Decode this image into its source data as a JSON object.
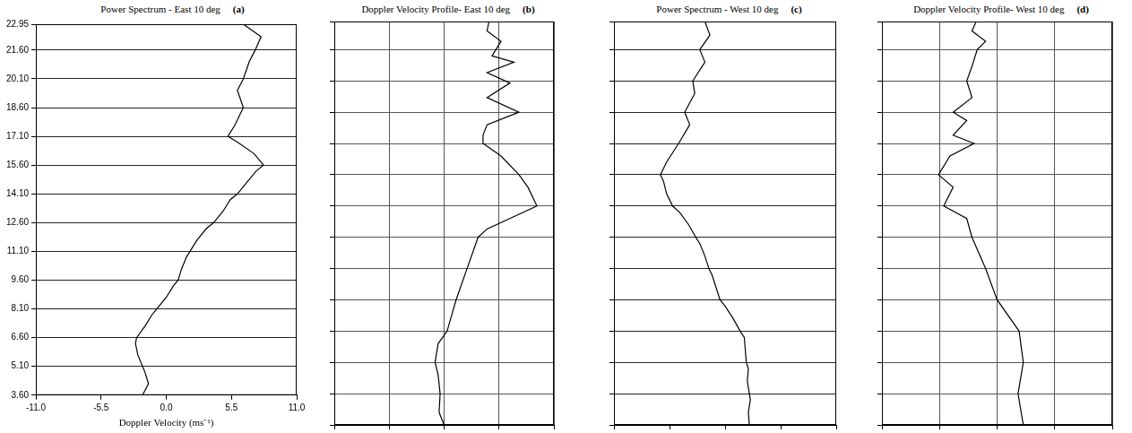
{
  "chart_data": [
    {
      "type": "line",
      "title": "Power Spectrum - East 10 deg",
      "panel": "(a)",
      "xlabel": "Doppler Velocity (ms⁻¹)",
      "x": [
        -2.0,
        -1.5,
        -1.8,
        -2.0,
        -2.4,
        -2.6,
        -2.5,
        -1.8,
        -1.2,
        -0.8,
        0.0,
        0.6,
        1.0,
        1.3,
        1.7,
        2.0,
        2.6,
        3.4,
        4.0,
        4.8,
        5.4,
        6.0,
        6.8,
        7.6,
        8.2,
        7.4,
        6.0,
        5.2,
        5.8,
        6.5,
        6.0,
        6.5,
        7.0,
        7.5,
        8.0,
        6.5
      ],
      "y": [
        3.6,
        4.2,
        4.8,
        5.1,
        5.7,
        6.3,
        6.6,
        7.2,
        7.8,
        8.1,
        8.7,
        9.3,
        9.6,
        10.2,
        10.8,
        11.1,
        11.7,
        12.3,
        12.6,
        13.2,
        13.8,
        14.1,
        14.7,
        15.3,
        15.6,
        16.2,
        16.8,
        17.1,
        17.7,
        18.6,
        19.5,
        20.1,
        21.0,
        21.6,
        22.3,
        22.95
      ],
      "color": "#000000",
      "xlim": [
        -11,
        11
      ],
      "xticks": [
        {
          "value": -11,
          "label": "-11.0"
        },
        -5.5,
        {
          "value": 0,
          "label": "0.0"
        },
        5.5,
        {
          "value": 11,
          "label": "11.0"
        }
      ],
      "ylim": [
        3.6,
        22.95
      ],
      "yticks": [
        {
          "value": 3.6,
          "label": "3.60"
        },
        {
          "value": 5.1,
          "label": "5.10"
        },
        {
          "value": 6.6,
          "label": "6.60"
        },
        {
          "value": 8.1,
          "label": "8.10"
        },
        {
          "value": 9.6,
          "label": "9.60"
        },
        {
          "value": 11.1,
          "label": "11.10"
        },
        {
          "value": 12.6,
          "label": "12.60"
        },
        {
          "value": 14.1,
          "label": "14.10"
        },
        {
          "value": 15.6,
          "label": "15.60"
        },
        {
          "value": 17.1,
          "label": "17.10"
        },
        {
          "value": 18.6,
          "label": "18.60"
        },
        {
          "value": 20.1,
          "label": "20.10"
        },
        {
          "value": 21.6,
          "label": "21.60"
        },
        22.95
      ],
      "grid": "y"
    },
    {
      "type": "line",
      "title": "Doppler Velocity Profile- East 10 deg",
      "panel": "(b)",
      "x": [
        0.0,
        -0.5,
        -0.4,
        -0.6,
        -0.9,
        -0.6,
        0.3,
        1.2,
        2.3,
        3.4,
        4.3,
        9.3,
        8.4,
        7.5,
        5.7,
        3.9,
        3.9,
        4.3,
        7.5,
        4.3,
        6.6,
        4.3,
        7.0,
        4.8,
        5.7,
        4.3,
        4.5
      ],
      "y": [
        3.6,
        4.2,
        5.1,
        6.0,
        6.6,
        7.5,
        8.1,
        9.6,
        11.1,
        12.6,
        13.0,
        14.1,
        15.0,
        15.6,
        16.5,
        17.1,
        17.5,
        18.0,
        18.6,
        19.3,
        20.0,
        20.5,
        21.0,
        21.3,
        22.0,
        22.5,
        22.95
      ],
      "color": "#000000",
      "xlim": [
        -11,
        11
      ],
      "xticks": [
        -11,
        -5.5,
        0,
        5.5,
        11
      ],
      "ylim": [
        3.6,
        22.95
      ],
      "yticks": [
        3.6,
        5.1,
        6.6,
        8.1,
        9.6,
        11.1,
        12.6,
        14.1,
        15.6,
        17.1,
        18.6,
        20.1,
        21.6,
        22.95
      ],
      "grid": true,
      "tick_labels": false
    },
    {
      "type": "line",
      "title": "Power Spectrum - West 10 deg",
      "panel": "(c)",
      "x": [
        2.4,
        2.3,
        2.5,
        2.4,
        2.2,
        2.3,
        2.1,
        2.0,
        1.9,
        1.5,
        0.8,
        0.0,
        -0.5,
        -0.9,
        -1.3,
        -1.6,
        -2.0,
        -2.5,
        -2.9,
        -3.6,
        -4.5,
        -5.2,
        -5.8,
        -6.1,
        -6.4,
        -5.8,
        -5.0,
        -4.6,
        -3.5,
        -4.0,
        -3.0,
        -3.2,
        -2.0,
        -2.5,
        -1.5,
        -2.0
      ],
      "y": [
        3.6,
        4.2,
        4.8,
        5.1,
        5.7,
        6.3,
        6.6,
        7.2,
        7.8,
        8.1,
        8.7,
        9.3,
        9.6,
        10.2,
        10.8,
        11.1,
        11.7,
        12.3,
        12.6,
        13.2,
        13.8,
        14.1,
        14.7,
        15.3,
        15.6,
        16.2,
        16.8,
        17.1,
        18.0,
        18.6,
        19.5,
        20.1,
        21.0,
        21.6,
        22.3,
        22.95
      ],
      "color": "#000000",
      "xlim": [
        -11,
        11
      ],
      "xticks": [
        -11,
        -5.5,
        0,
        5.5,
        11
      ],
      "ylim": [
        3.6,
        22.95
      ],
      "yticks": [
        3.6,
        5.1,
        6.6,
        8.1,
        9.6,
        11.1,
        12.6,
        14.1,
        15.6,
        17.1,
        18.6,
        20.1,
        21.6,
        22.95
      ],
      "grid": "y",
      "tick_labels": false
    },
    {
      "type": "line",
      "title": "Doppler Velocity Profile- West 10 deg",
      "panel": "(d)",
      "x": [
        2.5,
        2.0,
        2.5,
        2.1,
        0.0,
        -1.1,
        -2.4,
        -2.9,
        -5.1,
        -4.2,
        -5.6,
        -4.5,
        -2.2,
        -4.2,
        -2.9,
        -4.2,
        -2.4,
        -2.9,
        -2.4,
        -1.9,
        -1.1,
        -2.4,
        -2.0
      ],
      "y": [
        3.6,
        5.1,
        6.6,
        8.1,
        9.6,
        11.1,
        12.6,
        13.5,
        14.1,
        15.0,
        15.6,
        16.5,
        17.1,
        17.5,
        18.2,
        18.6,
        19.3,
        20.1,
        20.8,
        21.6,
        22.0,
        22.5,
        22.95
      ],
      "color": "#000000",
      "xlim": [
        -11,
        11
      ],
      "xticks": [
        -11,
        -5.5,
        0,
        5.5,
        11
      ],
      "ylim": [
        3.6,
        22.95
      ],
      "yticks": [
        3.6,
        5.1,
        6.6,
        8.1,
        9.6,
        11.1,
        12.6,
        14.1,
        15.6,
        17.1,
        18.6,
        20.1,
        21.6,
        22.95
      ],
      "grid": true,
      "tick_labels": false
    }
  ]
}
